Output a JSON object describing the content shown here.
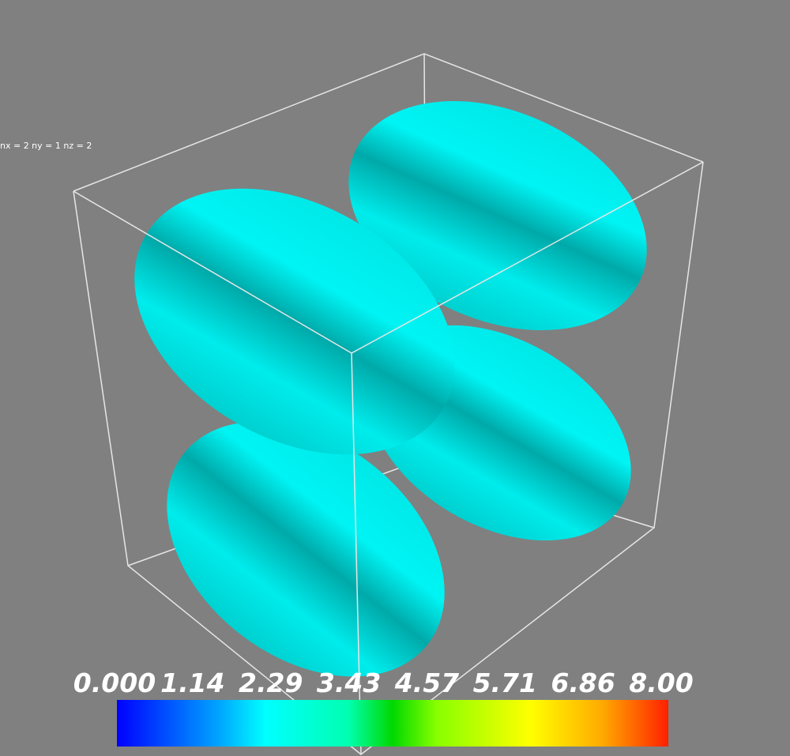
{
  "annotation": "nx = 2 ny = 1 nz = 2",
  "colorbar": {
    "labels": [
      "0.000",
      "1.14",
      "2.29",
      "3.43",
      "4.57",
      "5.71",
      "6.86",
      "8.00"
    ]
  }
}
